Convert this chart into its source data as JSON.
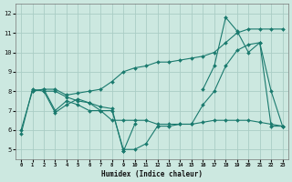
{
  "xlabel": "Humidex (Indice chaleur)",
  "background_color": "#cce8e0",
  "grid_color": "#aacdc5",
  "line_color": "#1a7a6e",
  "xlim": [
    -0.5,
    23.5
  ],
  "ylim": [
    4.5,
    12.5
  ],
  "yticks": [
    5,
    6,
    7,
    8,
    9,
    10,
    11,
    12
  ],
  "xticks": [
    0,
    1,
    2,
    3,
    4,
    5,
    6,
    7,
    8,
    9,
    10,
    11,
    12,
    13,
    14,
    15,
    16,
    17,
    18,
    19,
    20,
    21,
    22,
    23
  ],
  "lines": [
    {
      "x": [
        0,
        1,
        2,
        3,
        4,
        5,
        6,
        7,
        8,
        9,
        10,
        11,
        12,
        13,
        14,
        15,
        16,
        17,
        18,
        19,
        20,
        21,
        22,
        23
      ],
      "y": [
        5.8,
        8.1,
        8.0,
        6.9,
        7.3,
        7.6,
        7.4,
        7.0,
        7.0,
        5.0,
        5.0,
        5.3,
        6.2,
        6.2,
        6.3,
        6.3,
        7.3,
        8.0,
        9.3,
        10.1,
        10.4,
        10.5,
        6.2,
        6.2
      ]
    },
    {
      "x": [
        0,
        1,
        2,
        3,
        4,
        5,
        6,
        7,
        8,
        9,
        10,
        11,
        12,
        13,
        14,
        15,
        16,
        17,
        18,
        19,
        20,
        21,
        22,
        23
      ],
      "y": [
        6.0,
        8.0,
        8.1,
        7.0,
        7.5,
        7.3,
        7.0,
        7.0,
        6.5,
        6.5,
        6.5,
        6.5,
        6.3,
        6.3,
        6.3,
        6.3,
        6.4,
        6.5,
        6.5,
        6.5,
        6.5,
        6.4,
        6.3,
        6.2
      ]
    },
    {
      "x": [
        1,
        2,
        3,
        4,
        5,
        6,
        7,
        8,
        9,
        10,
        11,
        12,
        13,
        14,
        15,
        16,
        17,
        18,
        19,
        20,
        21,
        22,
        23
      ],
      "y": [
        8.0,
        8.1,
        8.1,
        7.8,
        7.9,
        8.0,
        8.1,
        8.5,
        9.0,
        9.2,
        9.3,
        9.5,
        9.5,
        9.6,
        9.7,
        9.8,
        10.0,
        10.5,
        11.0,
        11.2,
        11.2,
        11.2,
        11.2
      ]
    },
    {
      "x": [
        2,
        3,
        4,
        5,
        6,
        7,
        8,
        9,
        9,
        10
      ],
      "y": [
        8.0,
        8.0,
        7.7,
        7.5,
        7.4,
        7.2,
        7.1,
        4.9,
        4.9,
        6.3
      ]
    },
    {
      "x": [
        16,
        17,
        18,
        19,
        20,
        21,
        22,
        23
      ],
      "y": [
        8.1,
        9.3,
        11.8,
        11.1,
        10.0,
        10.5,
        8.0,
        6.2
      ]
    }
  ]
}
